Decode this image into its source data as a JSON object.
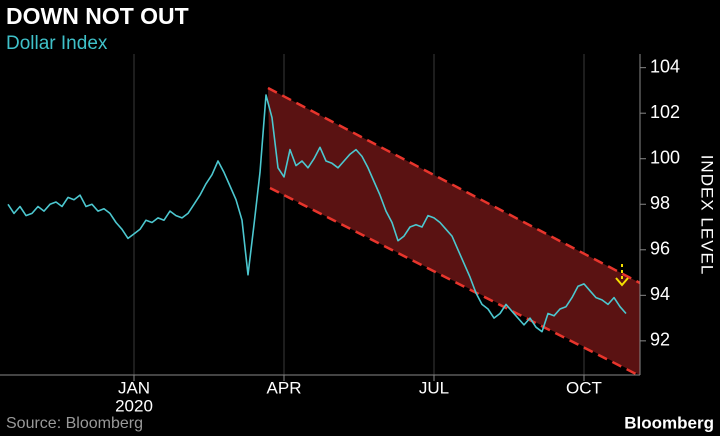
{
  "chart_data": {
    "type": "line",
    "title": "DOWN NOT OUT",
    "subtitle": "Dollar Index",
    "y_label": "INDEX LEVEL",
    "source": "Source: Bloomberg",
    "brand": "Bloomberg",
    "x_year": "2020",
    "categories": [
      null,
      null,
      null,
      null,
      null,
      null,
      null,
      null,
      null,
      null,
      null,
      null,
      null,
      null,
      null,
      null,
      null,
      null,
      null,
      null,
      null,
      "JAN",
      null,
      null,
      null,
      null,
      null,
      null,
      null,
      null,
      null,
      null,
      null,
      null,
      null,
      null,
      null,
      null,
      null,
      null,
      null,
      null,
      null,
      null,
      null,
      null,
      "APR",
      null,
      null,
      null,
      null,
      null,
      null,
      null,
      null,
      null,
      null,
      null,
      null,
      null,
      null,
      null,
      null,
      null,
      null,
      null,
      null,
      null,
      null,
      null,
      null,
      "JUL",
      null,
      null,
      null,
      null,
      null,
      null,
      null,
      null,
      null,
      null,
      null,
      null,
      null,
      null,
      null,
      null,
      null,
      null,
      null,
      null,
      null,
      null,
      null,
      null,
      "OCT",
      null,
      null,
      null,
      null,
      null,
      null,
      null
    ],
    "values": [
      98.0,
      97.6,
      97.9,
      97.5,
      97.6,
      97.9,
      97.7,
      98.0,
      98.1,
      97.9,
      98.3,
      98.2,
      98.4,
      97.9,
      98.0,
      97.7,
      97.8,
      97.6,
      97.2,
      96.9,
      96.5,
      96.7,
      96.9,
      97.3,
      97.2,
      97.4,
      97.3,
      97.7,
      97.5,
      97.4,
      97.6,
      98.0,
      98.4,
      98.9,
      99.3,
      99.9,
      99.4,
      98.8,
      98.2,
      97.3,
      94.9,
      97.1,
      99.4,
      102.8,
      101.8,
      99.6,
      99.2,
      100.4,
      99.7,
      99.9,
      99.6,
      100.0,
      100.5,
      99.9,
      99.8,
      99.6,
      99.9,
      100.2,
      100.4,
      100.1,
      99.6,
      99.0,
      98.4,
      97.7,
      97.2,
      96.4,
      96.6,
      97.0,
      97.1,
      97.0,
      97.5,
      97.4,
      97.2,
      96.9,
      96.6,
      96.0,
      95.4,
      94.8,
      94.1,
      93.6,
      93.4,
      93.0,
      93.2,
      93.6,
      93.3,
      93.0,
      92.7,
      93.0,
      92.6,
      92.4,
      93.2,
      93.1,
      93.4,
      93.5,
      93.9,
      94.4,
      94.5,
      94.2,
      93.9,
      93.8,
      93.6,
      93.9,
      93.5,
      93.2
    ],
    "color": "#4cc7cf",
    "ylim": [
      90.5,
      104.6
    ],
    "yticks": [
      92,
      94,
      96,
      98,
      100,
      102,
      104
    ],
    "grid": true
  }
}
